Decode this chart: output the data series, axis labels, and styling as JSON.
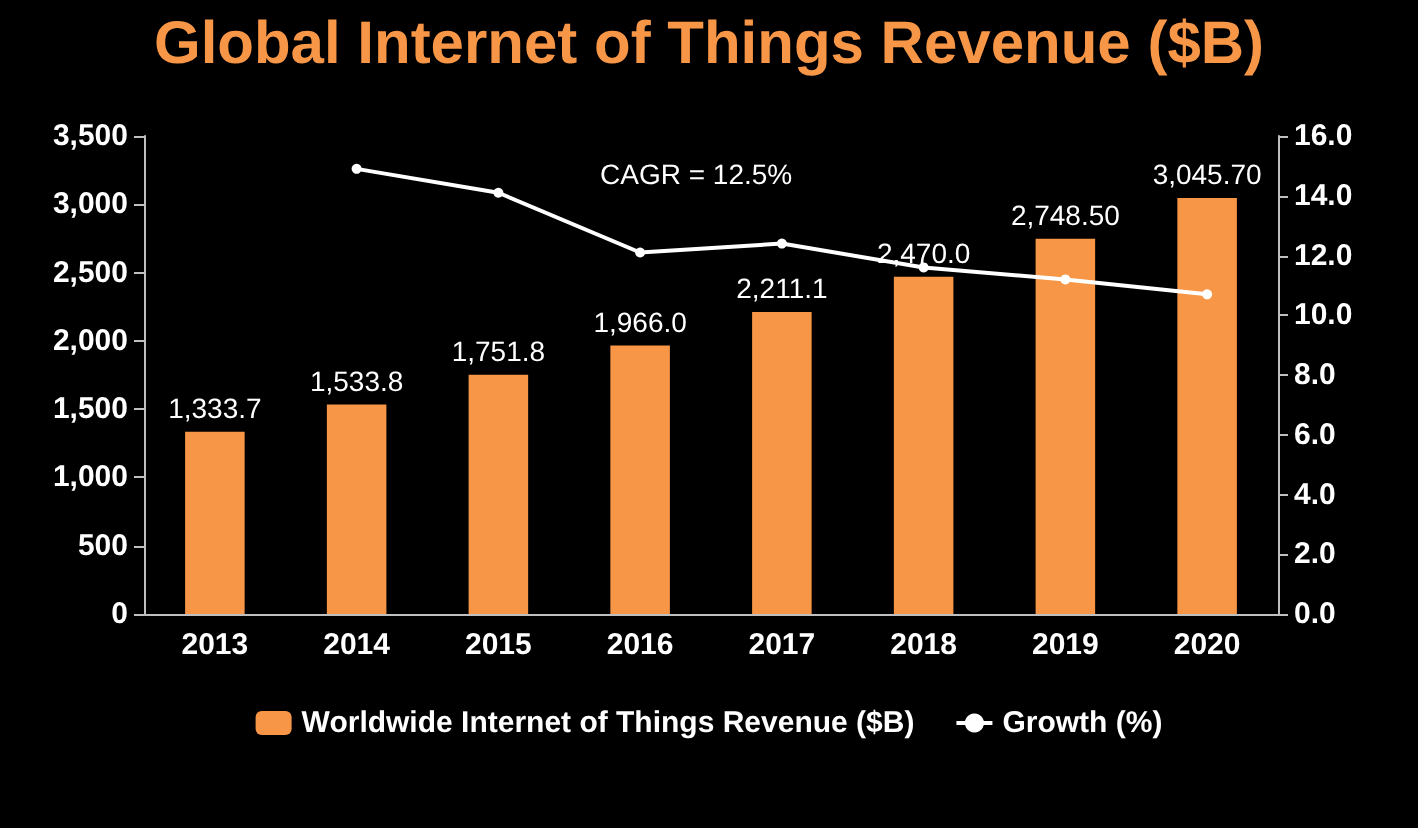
{
  "chart_data": {
    "type": "bar",
    "title": "Global Internet of Things Revenue ($B)",
    "categories": [
      "2013",
      "2014",
      "2015",
      "2016",
      "2017",
      "2018",
      "2019",
      "2020"
    ],
    "series": [
      {
        "name": "Worldwide Internet of Things Revenue ($B)",
        "color": "#f79646",
        "values": [
          1333.7,
          1533.8,
          1751.8,
          1966.0,
          2211.1,
          2470.0,
          2748.5,
          3045.7
        ],
        "value_labels": [
          "1,333.7",
          "1,533.8",
          "1,751.8",
          "1,966.0",
          "2,211.1",
          "2,470.0",
          "2,748.50",
          "3,045.70"
        ]
      },
      {
        "name": "Growth (%)",
        "type": "line",
        "axis": "y2",
        "color": "#ffffff",
        "marker": "circle",
        "values": [
          null,
          14.9,
          14.1,
          12.1,
          12.4,
          11.6,
          11.2,
          10.7
        ]
      }
    ],
    "ylim": [
      0,
      3500
    ],
    "yticks": [
      0,
      500,
      "1,000",
      "1,500",
      "2,000",
      "2,500",
      "3,000",
      "3,500"
    ],
    "y2lim": [
      0,
      16
    ],
    "y2ticks": [
      {
        "value": 0,
        "label": "0.0"
      },
      {
        "value": 2,
        "label": "2.0"
      },
      {
        "value": 4,
        "label": "4.0"
      },
      {
        "value": 6,
        "label": "6.0"
      },
      {
        "value": 8,
        "label": "8.0"
      },
      {
        "value": 10,
        "label": "10.0"
      },
      {
        "value": 12,
        "label": "12.0"
      },
      {
        "value": 14,
        "label": "14.0"
      },
      {
        "value": 16,
        "label": "16.0"
      }
    ],
    "annotations": [
      "CAGR = 12.5%"
    ],
    "legend": "bottom",
    "grid": false
  }
}
